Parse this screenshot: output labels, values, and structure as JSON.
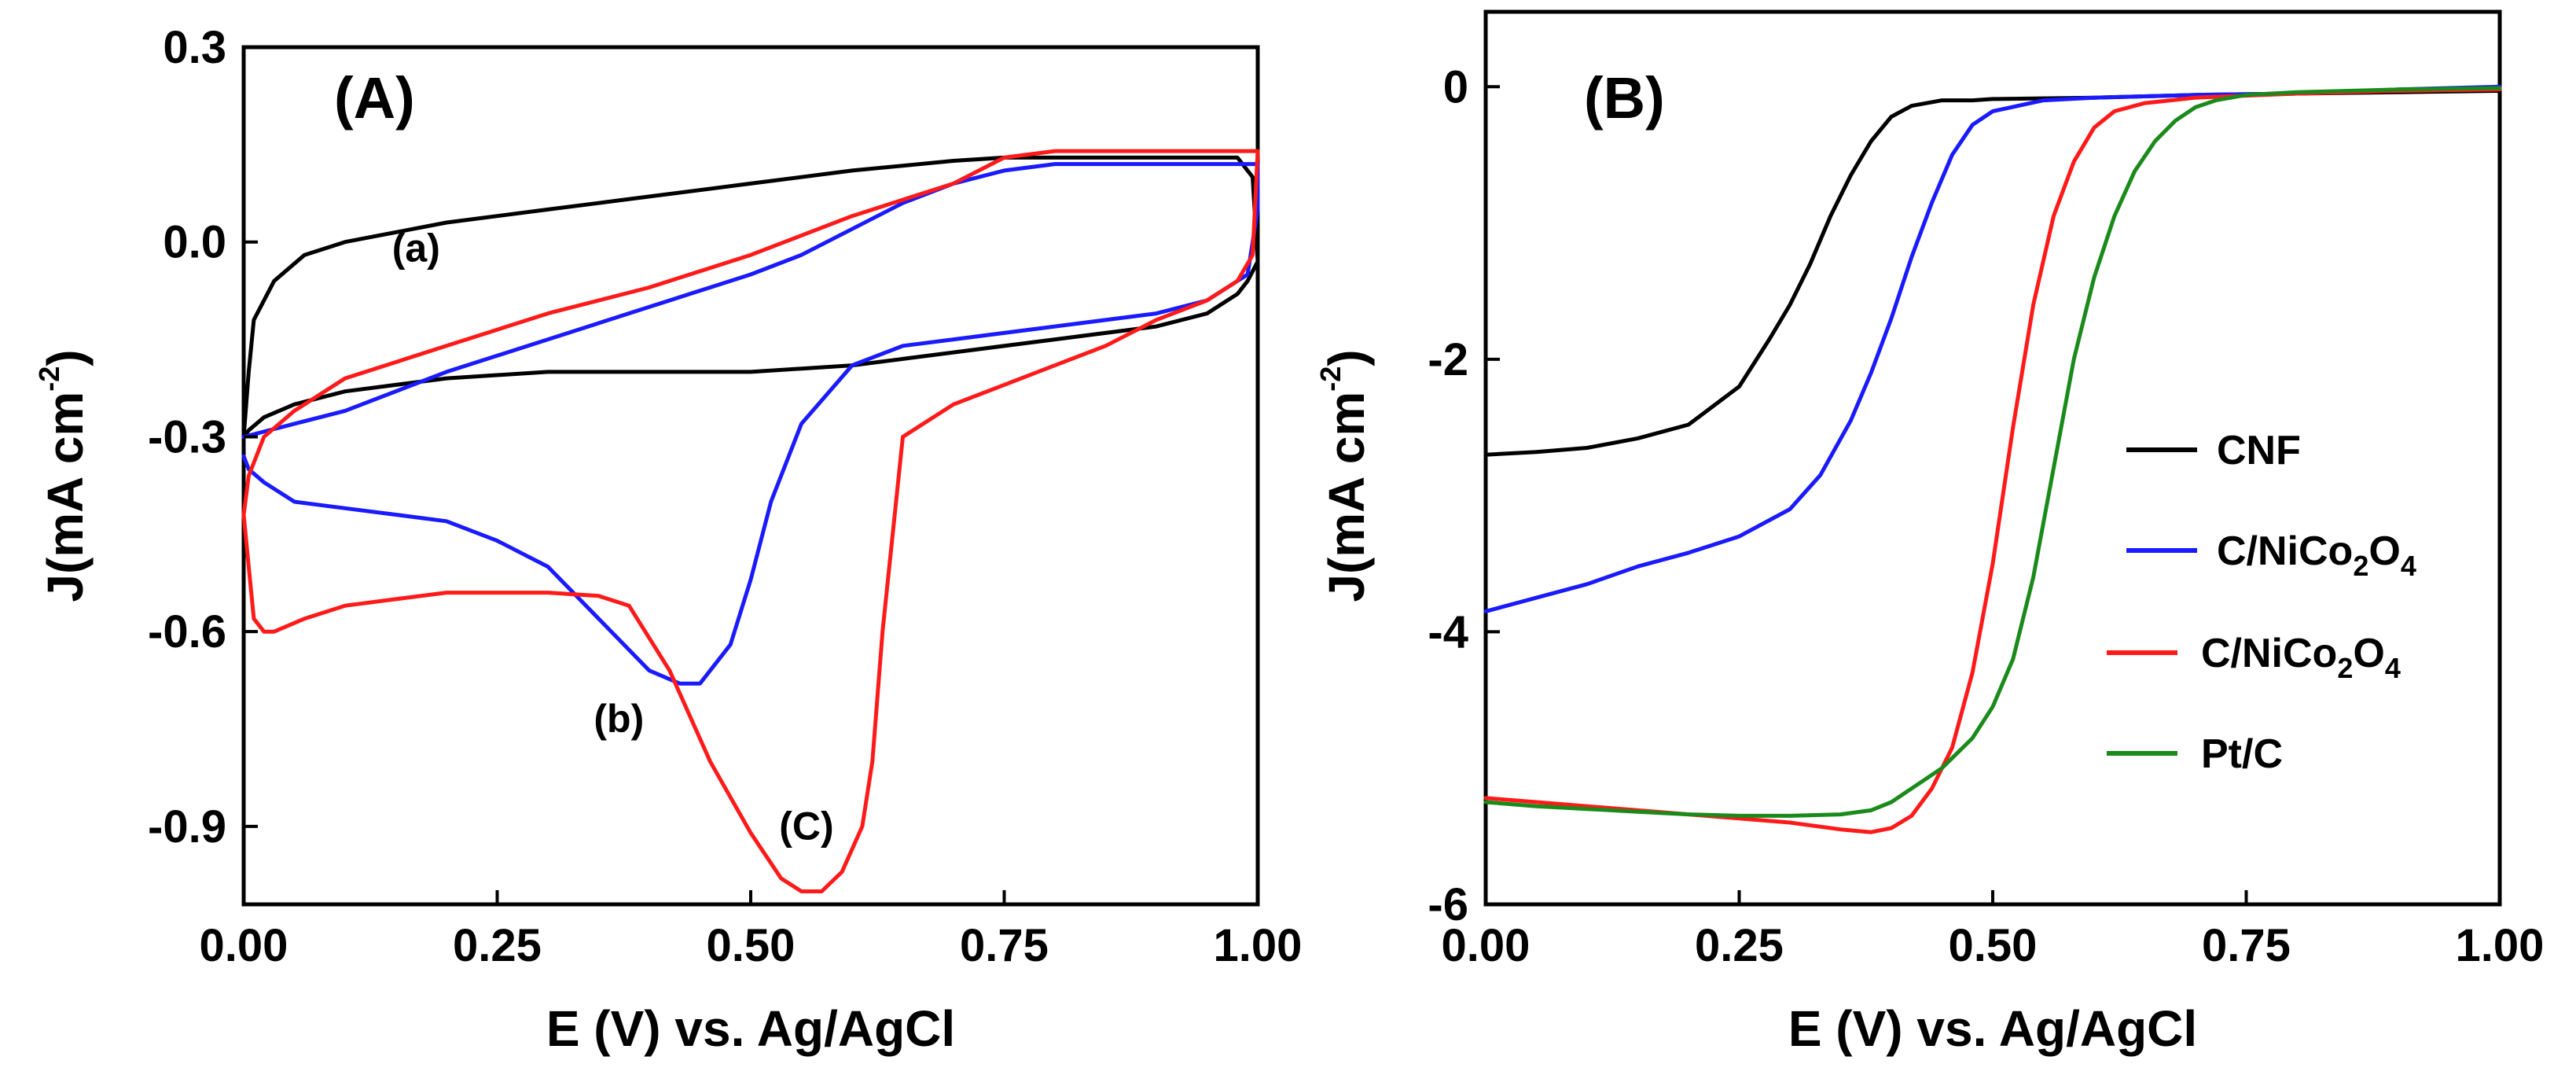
{
  "colors": {
    "black": "#000000",
    "blue": "#1a1aff",
    "red": "#ff1a1a",
    "green": "#1a8a1a"
  },
  "chart_data": [
    {
      "panel": "A",
      "panel_label": "(A)",
      "type": "line",
      "title": "",
      "xlabel": "E (V) vs. Ag/AgCl",
      "ylabel_main": "J(mA cm",
      "ylabel_sup": "-2",
      "ylabel_close": ")",
      "xlim": [
        0.0,
        1.0
      ],
      "ylim": [
        -1.02,
        0.3
      ],
      "xticks": [
        "0.00",
        "0.25",
        "0.50",
        "0.75",
        "1.00"
      ],
      "yticks": [
        "0.3",
        "0.0",
        "-0.3",
        "-0.6",
        "-0.9"
      ],
      "ytick_values": [
        0.3,
        0.0,
        -0.3,
        -0.6,
        -0.9
      ],
      "xtick_values": [
        0.0,
        0.25,
        0.5,
        0.75,
        1.0
      ],
      "annotations": [
        {
          "text": "(a)",
          "x": 0.17,
          "y": -0.03
        },
        {
          "text": "(b)",
          "x": 0.37,
          "y": -0.755
        },
        {
          "text": "(C)",
          "x": 0.555,
          "y": -0.92
        }
      ],
      "series": [
        {
          "name": "(a)",
          "color": "black",
          "x": [
            0.0,
            0.005,
            0.01,
            0.03,
            0.06,
            0.1,
            0.2,
            0.3,
            0.4,
            0.5,
            0.6,
            0.7,
            0.75,
            0.8,
            0.9,
            0.98,
            0.995,
            1.0,
            0.99,
            0.98,
            0.95,
            0.9,
            0.8,
            0.7,
            0.65,
            0.6,
            0.5,
            0.4,
            0.3,
            0.2,
            0.1,
            0.05,
            0.02,
            0.005,
            0.0
          ],
          "y": [
            -0.3,
            -0.2,
            -0.12,
            -0.06,
            -0.02,
            0.0,
            0.03,
            0.05,
            0.07,
            0.09,
            0.11,
            0.125,
            0.13,
            0.13,
            0.13,
            0.13,
            0.1,
            -0.03,
            -0.06,
            -0.08,
            -0.11,
            -0.13,
            -0.15,
            -0.17,
            -0.18,
            -0.19,
            -0.2,
            -0.2,
            -0.2,
            -0.21,
            -0.23,
            -0.25,
            -0.27,
            -0.29,
            -0.3
          ]
        },
        {
          "name": "(b)",
          "color": "blue",
          "x": [
            0.0,
            0.005,
            0.02,
            0.05,
            0.1,
            0.15,
            0.2,
            0.25,
            0.3,
            0.35,
            0.4,
            0.43,
            0.45,
            0.48,
            0.5,
            0.52,
            0.55,
            0.6,
            0.65,
            0.7,
            0.8,
            0.9,
            0.95,
            0.99,
            1.0,
            1.0,
            0.99,
            0.97,
            0.8,
            0.75,
            0.7,
            0.65,
            0.6,
            0.55,
            0.5,
            0.4,
            0.3,
            0.2,
            0.1,
            0.05,
            0.0
          ],
          "y": [
            -0.33,
            -0.35,
            -0.37,
            -0.4,
            -0.41,
            -0.42,
            -0.43,
            -0.46,
            -0.5,
            -0.58,
            -0.66,
            -0.68,
            -0.68,
            -0.62,
            -0.52,
            -0.4,
            -0.28,
            -0.19,
            -0.16,
            -0.15,
            -0.13,
            -0.11,
            -0.09,
            -0.05,
            0.05,
            0.12,
            0.12,
            0.12,
            0.12,
            0.11,
            0.09,
            0.06,
            0.02,
            -0.02,
            -0.05,
            -0.1,
            -0.15,
            -0.2,
            -0.26,
            -0.28,
            -0.3
          ]
        },
        {
          "name": "(C)",
          "color": "red",
          "x": [
            0.0,
            0.005,
            0.01,
            0.02,
            0.03,
            0.06,
            0.1,
            0.15,
            0.2,
            0.25,
            0.3,
            0.35,
            0.38,
            0.42,
            0.46,
            0.5,
            0.53,
            0.55,
            0.57,
            0.59,
            0.61,
            0.62,
            0.63,
            0.65,
            0.7,
            0.75,
            0.8,
            0.85,
            0.9,
            0.95,
            0.98,
            0.995,
            1.0,
            0.99,
            0.97,
            0.95,
            0.9,
            0.8,
            0.75,
            0.7,
            0.6,
            0.5,
            0.4,
            0.3,
            0.2,
            0.1,
            0.05,
            0.02,
            0.005,
            0.0
          ],
          "y": [
            -0.42,
            -0.5,
            -0.58,
            -0.6,
            -0.6,
            -0.58,
            -0.56,
            -0.55,
            -0.54,
            -0.54,
            -0.54,
            -0.545,
            -0.56,
            -0.66,
            -0.8,
            -0.91,
            -0.98,
            -1.0,
            -1.0,
            -0.97,
            -0.9,
            -0.8,
            -0.6,
            -0.3,
            -0.25,
            -0.22,
            -0.19,
            -0.16,
            -0.12,
            -0.09,
            -0.06,
            -0.02,
            0.14,
            0.14,
            0.14,
            0.14,
            0.14,
            0.14,
            0.13,
            0.09,
            0.04,
            -0.02,
            -0.07,
            -0.11,
            -0.16,
            -0.21,
            -0.26,
            -0.3,
            -0.36,
            -0.42
          ]
        }
      ]
    },
    {
      "panel": "B",
      "panel_label": "(B)",
      "type": "line",
      "title": "",
      "xlabel": "E (V) vs. Ag/AgCl",
      "ylabel_main": "J(mA cm",
      "ylabel_sup": "-2",
      "ylabel_close": ")",
      "xlim": [
        0.0,
        1.0
      ],
      "ylim": [
        -6.0,
        0.55
      ],
      "xticks": [
        "0.00",
        "0.25",
        "0.50",
        "0.75",
        "1.00"
      ],
      "yticks": [
        "0",
        "-2",
        "-4",
        "-6"
      ],
      "ytick_values": [
        0,
        -2,
        -4,
        -6
      ],
      "xtick_values": [
        0.0,
        0.25,
        0.5,
        0.75,
        1.0
      ],
      "legend_position": "center-right",
      "legend": [
        {
          "label": "CNF",
          "color": "black"
        },
        {
          "label_main": "C/NiCo",
          "label_sub1": "2",
          "label_mid": "O",
          "label_sub2": "4",
          "color": "blue"
        },
        {
          "label_main": "C/NiCo",
          "label_sub1": "2",
          "label_mid": "O",
          "label_sub2": "4",
          "color": "red"
        },
        {
          "label": "Pt/C",
          "color": "green"
        }
      ],
      "series": [
        {
          "name": "CNF",
          "color": "black",
          "x": [
            0.0,
            0.05,
            0.1,
            0.15,
            0.2,
            0.25,
            0.28,
            0.3,
            0.32,
            0.34,
            0.36,
            0.38,
            0.4,
            0.42,
            0.45,
            0.48,
            0.5,
            0.6,
            0.7,
            0.8,
            0.9,
            1.0
          ],
          "y": [
            -2.7,
            -2.68,
            -2.65,
            -2.58,
            -2.48,
            -2.2,
            -1.85,
            -1.6,
            -1.3,
            -0.95,
            -0.65,
            -0.4,
            -0.22,
            -0.14,
            -0.1,
            -0.1,
            -0.09,
            -0.08,
            -0.06,
            -0.05,
            -0.04,
            -0.03
          ]
        },
        {
          "name": "C/NiCo2O4",
          "color": "blue",
          "x": [
            0.0,
            0.05,
            0.1,
            0.15,
            0.2,
            0.25,
            0.3,
            0.33,
            0.36,
            0.38,
            0.4,
            0.42,
            0.44,
            0.46,
            0.48,
            0.5,
            0.55,
            0.6,
            0.7,
            0.8,
            0.9,
            1.0
          ],
          "y": [
            -3.85,
            -3.75,
            -3.65,
            -3.52,
            -3.42,
            -3.3,
            -3.1,
            -2.85,
            -2.45,
            -2.1,
            -1.7,
            -1.25,
            -0.85,
            -0.5,
            -0.28,
            -0.18,
            -0.1,
            -0.08,
            -0.06,
            -0.05,
            -0.02,
            0.0
          ]
        },
        {
          "name": "C/NiCo2O4 (red)",
          "color": "red",
          "x": [
            0.0,
            0.05,
            0.1,
            0.15,
            0.2,
            0.25,
            0.3,
            0.35,
            0.38,
            0.4,
            0.42,
            0.44,
            0.46,
            0.48,
            0.5,
            0.52,
            0.54,
            0.56,
            0.58,
            0.6,
            0.62,
            0.65,
            0.7,
            0.8,
            0.9,
            1.0
          ],
          "y": [
            -5.22,
            -5.25,
            -5.28,
            -5.31,
            -5.34,
            -5.37,
            -5.4,
            -5.45,
            -5.47,
            -5.44,
            -5.35,
            -5.15,
            -4.85,
            -4.3,
            -3.5,
            -2.5,
            -1.6,
            -0.95,
            -0.55,
            -0.3,
            -0.18,
            -0.12,
            -0.08,
            -0.05,
            -0.03,
            -0.02
          ]
        },
        {
          "name": "Pt/C",
          "color": "green",
          "x": [
            0.0,
            0.05,
            0.1,
            0.15,
            0.2,
            0.25,
            0.3,
            0.35,
            0.38,
            0.4,
            0.42,
            0.45,
            0.48,
            0.5,
            0.52,
            0.54,
            0.56,
            0.58,
            0.6,
            0.62,
            0.64,
            0.66,
            0.68,
            0.7,
            0.72,
            0.75,
            0.8,
            0.9,
            1.0
          ],
          "y": [
            -5.25,
            -5.28,
            -5.3,
            -5.32,
            -5.34,
            -5.35,
            -5.35,
            -5.34,
            -5.31,
            -5.25,
            -5.15,
            -5.0,
            -4.78,
            -4.55,
            -4.2,
            -3.6,
            -2.8,
            -2.0,
            -1.4,
            -0.95,
            -0.62,
            -0.4,
            -0.25,
            -0.15,
            -0.1,
            -0.06,
            -0.04,
            -0.02,
            -0.01
          ]
        }
      ]
    }
  ]
}
